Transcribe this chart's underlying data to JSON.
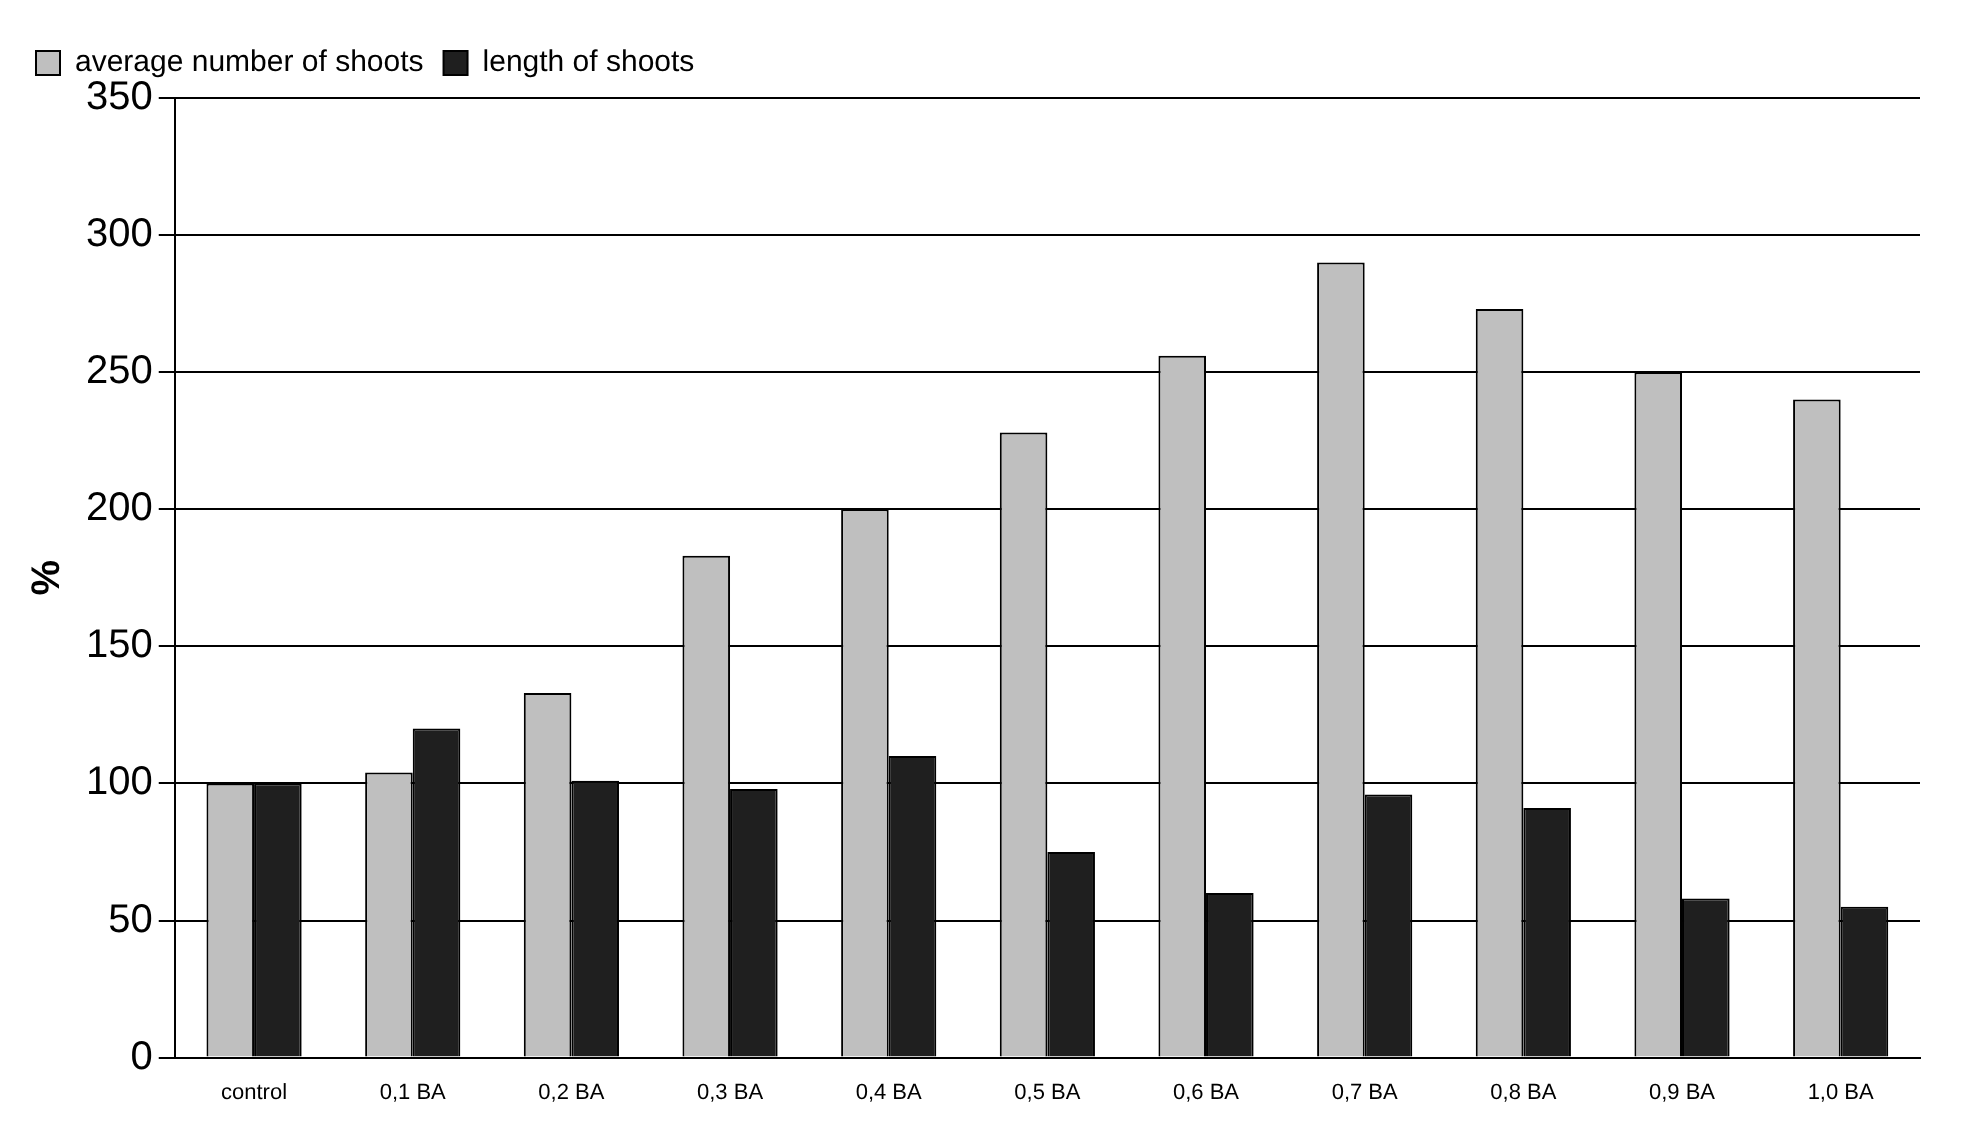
{
  "chart_data": {
    "type": "bar",
    "ylabel": "%",
    "categories": [
      "control",
      "0,1 BA",
      "0,2 BA",
      "0,3 BA",
      "0,4 BA",
      "0,5 BA",
      "0,6 BA",
      "0,7 BA",
      "0,8 BA",
      "0,9 BA",
      "1,0 BA"
    ],
    "series": [
      {
        "name": "average number of shoots",
        "color": "#bfbfbf",
        "values": [
          100,
          104,
          133,
          183,
          200,
          228,
          256,
          290,
          273,
          250,
          240
        ]
      },
      {
        "name": "length of shoots",
        "color": "#1f1f1f",
        "values": [
          100,
          120,
          101,
          98,
          110,
          75,
          60,
          96,
          91,
          58,
          55
        ]
      }
    ],
    "ylim": [
      0,
      350
    ],
    "yticks": [
      0,
      50,
      100,
      150,
      200,
      250,
      300,
      350
    ],
    "grid": "y",
    "legend": "top left"
  }
}
